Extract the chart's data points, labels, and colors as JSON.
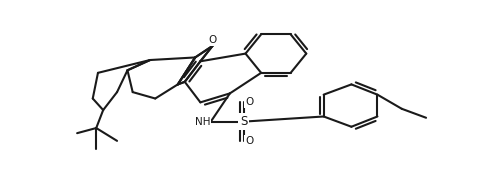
{
  "background_color": "#ffffff",
  "line_color": "#1a1a1a",
  "line_width": 1.5,
  "figsize": [
    4.96,
    1.9
  ],
  "dpi": 100,
  "xlim": [
    0,
    496
  ],
  "ylim": [
    0,
    190
  ]
}
